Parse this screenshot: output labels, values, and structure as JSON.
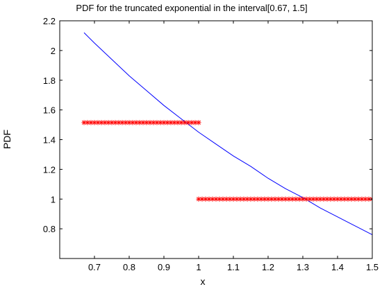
{
  "chart_data": {
    "type": "line",
    "title": "PDF for the truncated exponential in the interval[0.67, 1.5]",
    "xlabel": "x",
    "ylabel": "PDF",
    "xlim": [
      0.6,
      1.5
    ],
    "ylim": [
      0.6,
      2.2
    ],
    "xticks": [
      0.7,
      0.8,
      0.9,
      1,
      1.1,
      1.2,
      1.3,
      1.4,
      1.5
    ],
    "xtick_labels": [
      "0.7",
      "0.8",
      "0.9",
      "1",
      "1.1",
      "1.2",
      "1.3",
      "1.4",
      "1.5"
    ],
    "yticks": [
      0.8,
      1,
      1.2,
      1.4,
      1.6,
      1.8,
      2,
      2.2
    ],
    "ytick_labels": [
      "0.8",
      "1",
      "1.2",
      "1.4",
      "1.6",
      "1.8",
      "2",
      "2.2"
    ],
    "grid": false,
    "legend": "none",
    "series": [
      {
        "style": "line",
        "color": "#0000ff",
        "x": [
          0.67,
          0.7,
          0.75,
          0.8,
          0.85,
          0.9,
          0.95,
          1.0,
          1.05,
          1.1,
          1.15,
          1.2,
          1.25,
          1.3,
          1.35,
          1.4,
          1.45,
          1.5
        ],
        "y": [
          2.12,
          2.05,
          1.94,
          1.83,
          1.73,
          1.63,
          1.54,
          1.45,
          1.37,
          1.29,
          1.22,
          1.14,
          1.07,
          1.01,
          0.94,
          0.88,
          0.82,
          0.76
        ]
      },
      {
        "style": "markers",
        "marker": "asterisk",
        "color": "#ff0000",
        "x_start": 0.67,
        "x_end": 1.0,
        "y": 1.515,
        "count": 34
      },
      {
        "style": "markers",
        "marker": "asterisk",
        "color": "#ff0000",
        "x_start": 1.0,
        "x_end": 1.5,
        "y": 1.0,
        "count": 51
      }
    ]
  }
}
